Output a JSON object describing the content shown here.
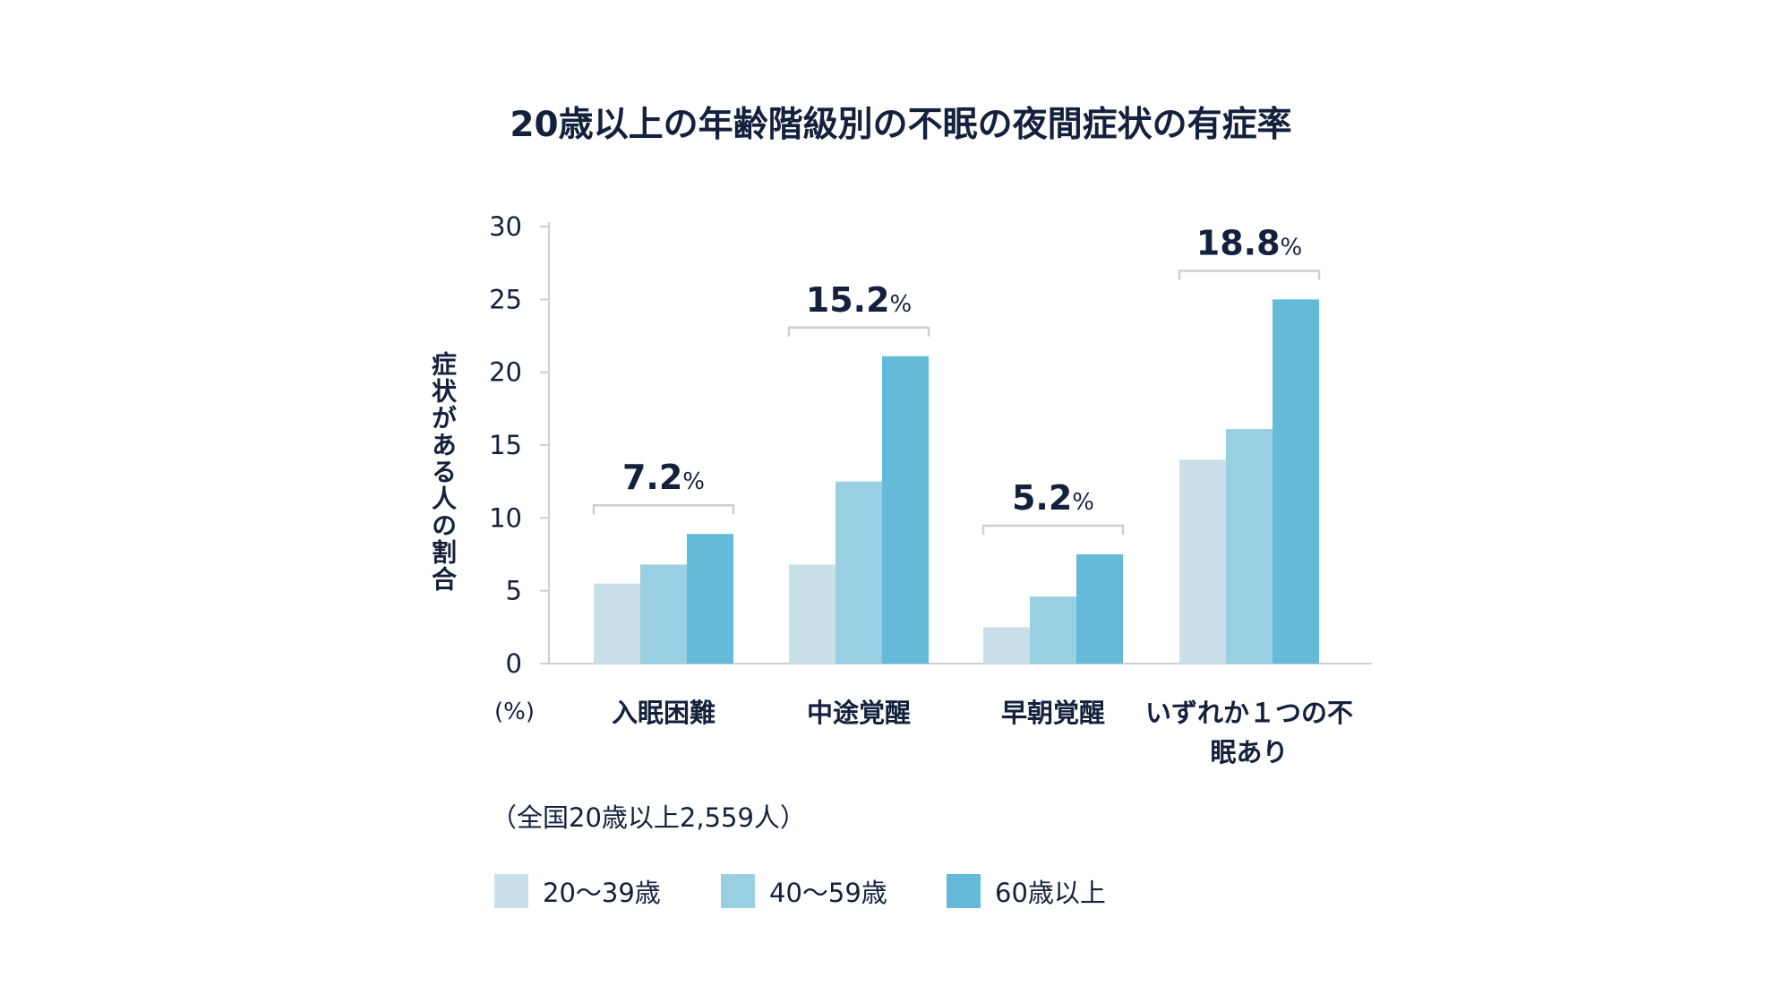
{
  "chart_data": {
    "type": "bar",
    "title": "20歳以上の年齢階級別の不眠の夜間症状の有症率",
    "ylabel": "症状がある人の割合",
    "unit_label": "(%)",
    "ylim": [
      0,
      30
    ],
    "yticks": [
      "0",
      "5",
      "10",
      "15",
      "20",
      "25",
      "30"
    ],
    "categories": [
      "入眠困難",
      "中途覚醒",
      "早朝覚醒",
      "いずれか１つの不眠あり"
    ],
    "totals": [
      {
        "value": "7.2",
        "unit": "%"
      },
      {
        "value": "15.2",
        "unit": "%"
      },
      {
        "value": "5.2",
        "unit": "%"
      },
      {
        "value": "18.8",
        "unit": "%"
      }
    ],
    "series": [
      {
        "name": "20〜39歳",
        "color": "#cae0e8",
        "values": [
          5.5,
          6.8,
          2.5,
          14.0
        ]
      },
      {
        "name": "40〜59歳",
        "color": "#98cfe2",
        "values": [
          6.8,
          12.5,
          4.6,
          16.1
        ]
      },
      {
        "name": "60歳以上",
        "color": "#64bbd9",
        "values": [
          8.9,
          21.1,
          7.5,
          25.0
        ]
      }
    ],
    "note": "（全国20歳以上2,559人）",
    "legend_position": "bottom-left",
    "grid": false
  }
}
